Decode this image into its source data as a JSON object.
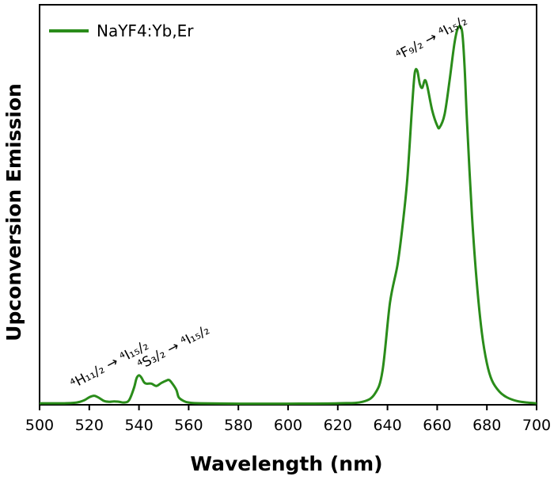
{
  "chart_data": {
    "type": "line",
    "xlabel": "Wavelength (nm)",
    "ylabel": "Upconversion Emission",
    "xlim": [
      500,
      700
    ],
    "ylim": [
      0,
      1.06
    ],
    "x_ticks": [
      500,
      520,
      540,
      560,
      580,
      600,
      620,
      640,
      660,
      680,
      700
    ],
    "y_ticks_shown": false,
    "grid": false,
    "legend_position": "top-left",
    "series": [
      {
        "name": "NaYF4:Yb,Er",
        "color": "#2a8c1a",
        "points": [
          [
            500,
            0.004
          ],
          [
            505,
            0.004
          ],
          [
            510,
            0.004
          ],
          [
            515,
            0.006
          ],
          [
            518,
            0.012
          ],
          [
            520,
            0.02
          ],
          [
            522,
            0.024
          ],
          [
            524,
            0.018
          ],
          [
            526,
            0.01
          ],
          [
            528,
            0.008
          ],
          [
            530,
            0.009
          ],
          [
            532,
            0.008
          ],
          [
            534,
            0.006
          ],
          [
            536,
            0.012
          ],
          [
            538,
            0.045
          ],
          [
            539,
            0.07
          ],
          [
            540,
            0.078
          ],
          [
            541,
            0.072
          ],
          [
            542,
            0.06
          ],
          [
            543,
            0.056
          ],
          [
            545,
            0.056
          ],
          [
            547,
            0.05
          ],
          [
            549,
            0.058
          ],
          [
            551,
            0.064
          ],
          [
            552,
            0.066
          ],
          [
            553,
            0.06
          ],
          [
            555,
            0.04
          ],
          [
            556,
            0.02
          ],
          [
            558,
            0.01
          ],
          [
            560,
            0.006
          ],
          [
            565,
            0.004
          ],
          [
            580,
            0.003
          ],
          [
            600,
            0.003
          ],
          [
            620,
            0.004
          ],
          [
            630,
            0.008
          ],
          [
            635,
            0.03
          ],
          [
            638,
            0.09
          ],
          [
            641,
            0.27
          ],
          [
            644,
            0.37
          ],
          [
            646,
            0.47
          ],
          [
            648,
            0.6
          ],
          [
            650,
            0.8
          ],
          [
            651,
            0.88
          ],
          [
            652,
            0.885
          ],
          [
            653,
            0.85
          ],
          [
            654,
            0.84
          ],
          [
            655,
            0.86
          ],
          [
            656,
            0.845
          ],
          [
            658,
            0.78
          ],
          [
            660,
            0.74
          ],
          [
            661,
            0.735
          ],
          [
            663,
            0.77
          ],
          [
            665,
            0.86
          ],
          [
            667,
            0.96
          ],
          [
            668.5,
            1.0
          ],
          [
            670,
            0.99
          ],
          [
            671,
            0.9
          ],
          [
            672,
            0.75
          ],
          [
            674,
            0.5
          ],
          [
            676,
            0.32
          ],
          [
            678,
            0.19
          ],
          [
            680,
            0.11
          ],
          [
            682,
            0.065
          ],
          [
            685,
            0.035
          ],
          [
            688,
            0.02
          ],
          [
            692,
            0.01
          ],
          [
            696,
            0.006
          ],
          [
            700,
            0.004
          ]
        ]
      }
    ],
    "annotations": [
      {
        "text": "⁴H₁₁/₂ → ⁴I₁₅/₂",
        "x": 520,
        "y": 0.03
      },
      {
        "text": "⁴S₃/₂ → ⁴I₁₅/₂",
        "x": 547,
        "y": 0.08
      },
      {
        "text": "⁴F₉/₂ → ⁴I₁₅/₂",
        "x": 651,
        "y": 0.9
      }
    ]
  }
}
